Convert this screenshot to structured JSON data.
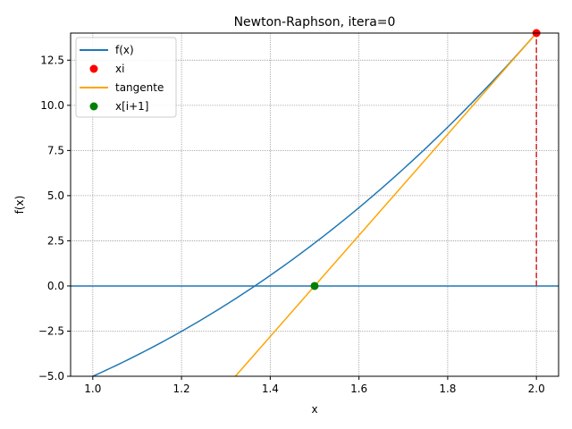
{
  "chart_data": {
    "type": "line",
    "title": "Newton-Raphson, itera=0",
    "xlabel": "x",
    "ylabel": "f(x)",
    "xlim": [
      0.95,
      2.05
    ],
    "ylim": [
      -5.0,
      14.0
    ],
    "grid": true,
    "legend_position": "upper left",
    "xticks": [
      "1.0",
      "1.2",
      "1.4",
      "1.6",
      "1.8",
      "2.0"
    ],
    "yticks": [
      "−5.0",
      "−2.5",
      "0.0",
      "2.5",
      "5.0",
      "7.5",
      "10.0",
      "12.5"
    ],
    "series": [
      {
        "name": "f(x)",
        "color": "#1f77b4",
        "style": "line",
        "x": [
          1.0,
          1.1,
          1.2,
          1.3,
          1.4,
          1.5,
          1.6,
          1.7,
          1.8,
          1.9,
          2.0
        ],
        "y": [
          -5.0,
          -3.829,
          -2.512,
          -1.043,
          0.584,
          2.375,
          4.336,
          6.473,
          8.792,
          11.299,
          14.0
        ]
      },
      {
        "name": "xi",
        "color": "#ff0000",
        "style": "marker",
        "x": [
          2.0
        ],
        "y": [
          14.0
        ]
      },
      {
        "name": "tangente",
        "color": "#ffa500",
        "style": "line",
        "x": [
          1.3214,
          2.0
        ],
        "y": [
          -5.0,
          14.0
        ]
      },
      {
        "name": "x[i+1]",
        "color": "#008000",
        "style": "marker",
        "x": [
          1.5
        ],
        "y": [
          0.0
        ]
      }
    ],
    "annotations": [
      {
        "type": "hline",
        "y": 0,
        "color": "#1f77b4"
      },
      {
        "type": "vline-dashed",
        "x": 2.0,
        "y_from": 0,
        "y_to": 14.0,
        "color": "#d62728"
      }
    ]
  },
  "legend": {
    "items": [
      {
        "label": "f(x)"
      },
      {
        "label": "xi"
      },
      {
        "label": "tangente"
      },
      {
        "label": "x[i+1]"
      }
    ]
  }
}
